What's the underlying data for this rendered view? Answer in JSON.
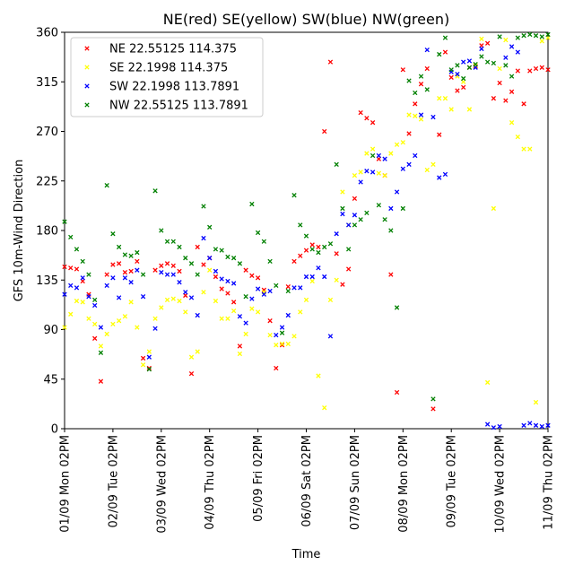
{
  "chart_data": {
    "type": "scatter",
    "title": "NE(red) SE(yellow) SW(blue) NW(green)",
    "xlabel": "Time",
    "ylabel": "GFS 10m-Wind Direction",
    "xlim": [
      0,
      240
    ],
    "ylim": [
      0,
      360
    ],
    "x_unit": "hours",
    "yticks": [
      0,
      45,
      90,
      135,
      180,
      225,
      270,
      315,
      360
    ],
    "xticks": [
      {
        "x": 0,
        "label": "01/09 Mon 02PM"
      },
      {
        "x": 24,
        "label": "02/09 Tue 02PM"
      },
      {
        "x": 48,
        "label": "03/09 Wed 02PM"
      },
      {
        "x": 72,
        "label": "04/09 Thu 02PM"
      },
      {
        "x": 96,
        "label": "05/09 Fri 02PM"
      },
      {
        "x": 120,
        "label": "06/09 Sat 02PM"
      },
      {
        "x": 144,
        "label": "07/09 Sun 02PM"
      },
      {
        "x": 168,
        "label": "08/09 Mon 02PM"
      },
      {
        "x": 192,
        "label": "09/09 Tue 02PM"
      },
      {
        "x": 216,
        "label": "10/09 Wed 02PM"
      },
      {
        "x": 240,
        "label": "11/09 Thu 02PM"
      }
    ],
    "legend_position": "upper-left",
    "marker": "x",
    "series": [
      {
        "name": "NE 22.55125 114.375",
        "color": "#ff0000",
        "x": [
          0,
          3,
          6,
          9,
          12,
          15,
          18,
          21,
          24,
          27,
          30,
          33,
          36,
          39,
          42,
          45,
          48,
          51,
          54,
          57,
          60,
          63,
          66,
          69,
          72,
          75,
          78,
          81,
          84,
          87,
          90,
          93,
          96,
          99,
          102,
          105,
          108,
          111,
          114,
          117,
          120,
          123,
          126,
          129,
          132,
          135,
          138,
          141,
          144,
          147,
          150,
          153,
          156,
          159,
          162,
          165,
          168,
          171,
          174,
          177,
          180,
          183,
          186,
          189,
          192,
          195,
          198,
          201,
          204,
          207,
          210,
          213,
          216,
          219,
          222,
          225,
          228,
          231,
          234,
          237,
          240
        ],
        "y": [
          147,
          146,
          145,
          134,
          122,
          82,
          43,
          140,
          149,
          150,
          142,
          143,
          152,
          64,
          55,
          144,
          148,
          150,
          148,
          143,
          121,
          50,
          165,
          149,
          155,
          138,
          127,
          123,
          115,
          75,
          144,
          139,
          137,
          126,
          98,
          55,
          76,
          129,
          152,
          157,
          162,
          167,
          165,
          270,
          333,
          159,
          131,
          145,
          209,
          287,
          282,
          278,
          245,
          230,
          140,
          33,
          326,
          268,
          295,
          313,
          327,
          18,
          267,
          342,
          319,
          307,
          310,
          328,
          329,
          348,
          350,
          300,
          314,
          298,
          306,
          325,
          295,
          325,
          327,
          328,
          326
        ],
        "label": ""
      },
      {
        "name": "SE 22.1998 114.375",
        "color": "#ffff00",
        "x": [
          0,
          3,
          6,
          9,
          12,
          15,
          18,
          21,
          24,
          27,
          30,
          33,
          36,
          39,
          42,
          45,
          48,
          51,
          54,
          57,
          60,
          63,
          66,
          69,
          72,
          75,
          78,
          81,
          84,
          87,
          90,
          93,
          96,
          99,
          102,
          105,
          108,
          111,
          114,
          117,
          120,
          123,
          126,
          129,
          132,
          135,
          138,
          141,
          144,
          147,
          150,
          153,
          156,
          159,
          162,
          165,
          168,
          171,
          174,
          177,
          180,
          183,
          186,
          189,
          192,
          195,
          198,
          201,
          204,
          207,
          210,
          213,
          216,
          219,
          222,
          225,
          228,
          231,
          234,
          237,
          240
        ],
        "y": [
          92,
          104,
          116,
          115,
          100,
          95,
          75,
          86,
          95,
          98,
          102,
          115,
          92,
          58,
          70,
          100,
          110,
          117,
          118,
          116,
          106,
          65,
          70,
          124,
          144,
          116,
          100,
          100,
          107,
          68,
          86,
          109,
          106,
          124,
          85,
          76,
          77,
          77,
          84,
          106,
          117,
          134,
          48,
          19,
          117,
          135,
          215,
          185,
          230,
          233,
          250,
          254,
          232,
          230,
          250,
          258,
          260,
          285,
          284,
          281,
          235,
          240,
          300,
          300,
          290,
          320,
          315,
          290,
          330,
          354,
          42,
          200,
          327,
          353,
          278,
          265,
          254,
          254,
          24,
          352,
          355
        ],
        "label": ""
      },
      {
        "name": "SW 22.1998 113.7891",
        "color": "#0000ff",
        "x": [
          0,
          3,
          6,
          9,
          12,
          15,
          18,
          21,
          24,
          27,
          30,
          33,
          36,
          39,
          42,
          45,
          48,
          51,
          54,
          57,
          60,
          63,
          66,
          69,
          72,
          75,
          78,
          81,
          84,
          87,
          90,
          93,
          96,
          99,
          102,
          105,
          108,
          111,
          114,
          117,
          120,
          123,
          126,
          129,
          132,
          135,
          138,
          141,
          144,
          147,
          150,
          153,
          156,
          159,
          162,
          165,
          168,
          171,
          174,
          177,
          180,
          183,
          186,
          189,
          192,
          195,
          198,
          201,
          204,
          207,
          210,
          213,
          216,
          219,
          222,
          225,
          228,
          231,
          234,
          237,
          240
        ],
        "y": [
          122,
          130,
          128,
          137,
          120,
          112,
          92,
          130,
          137,
          119,
          137,
          133,
          144,
          120,
          65,
          91,
          142,
          140,
          140,
          133,
          124,
          119,
          103,
          173,
          155,
          143,
          136,
          134,
          132,
          102,
          96,
          118,
          127,
          122,
          125,
          85,
          92,
          103,
          128,
          128,
          138,
          138,
          146,
          138,
          84,
          177,
          195,
          185,
          194,
          224,
          234,
          233,
          248,
          245,
          200,
          215,
          236,
          240,
          248,
          285,
          344,
          283,
          228,
          231,
          324,
          322,
          333,
          334,
          328,
          345,
          4,
          1,
          2,
          337,
          347,
          342,
          3,
          5,
          3,
          2,
          3
        ],
        "label": ""
      },
      {
        "name": "NW 22.55125 113.7891",
        "color": "#008000",
        "x": [
          0,
          3,
          6,
          9,
          12,
          15,
          18,
          21,
          24,
          27,
          30,
          33,
          36,
          39,
          42,
          45,
          48,
          51,
          54,
          57,
          60,
          63,
          66,
          69,
          72,
          75,
          78,
          81,
          84,
          87,
          90,
          93,
          96,
          99,
          102,
          105,
          108,
          111,
          114,
          117,
          120,
          123,
          126,
          129,
          132,
          135,
          138,
          141,
          144,
          147,
          150,
          153,
          156,
          159,
          162,
          165,
          168,
          171,
          174,
          177,
          180,
          183,
          186,
          189,
          192,
          195,
          198,
          201,
          204,
          207,
          210,
          213,
          216,
          219,
          222,
          225,
          228,
          231,
          234,
          237,
          240
        ],
        "y": [
          188,
          174,
          163,
          152,
          140,
          117,
          69,
          221,
          177,
          165,
          158,
          157,
          160,
          140,
          54,
          216,
          180,
          170,
          170,
          165,
          155,
          150,
          140,
          202,
          183,
          163,
          162,
          156,
          155,
          150,
          120,
          204,
          178,
          170,
          152,
          130,
          87,
          125,
          212,
          185,
          175,
          163,
          160,
          165,
          168,
          240,
          200,
          163,
          185,
          190,
          196,
          248,
          203,
          190,
          180,
          110,
          200,
          316,
          305,
          320,
          308,
          27,
          340,
          355,
          326,
          330,
          318,
          328,
          331,
          338,
          333,
          332,
          356,
          330,
          320,
          355,
          357,
          358,
          357,
          356,
          358
        ],
        "label": ""
      }
    ]
  },
  "legend": {
    "entries": [
      {
        "label": "NE 22.55125 114.375",
        "color": "#ff0000"
      },
      {
        "label": "SE 22.1998 114.375",
        "color": "#ffff00"
      },
      {
        "label": "SW 22.1998 113.7891",
        "color": "#0000ff"
      },
      {
        "label": "NW 22.55125 113.7891",
        "color": "#008000"
      }
    ]
  }
}
